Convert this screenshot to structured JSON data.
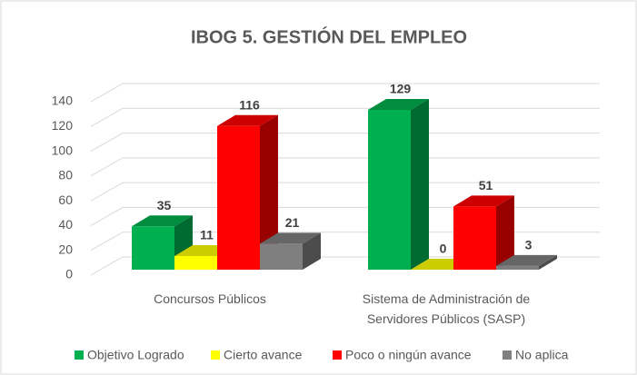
{
  "chart_data": {
    "type": "bar3d",
    "title": "IBOG 5. GESTIÓN DEL EMPLEO",
    "categories": [
      "Concursos Públicos",
      "Sistema de Administración de Servidores Públicos (SASP)"
    ],
    "series": [
      {
        "name": "Objetivo Logrado",
        "color": "#00b050",
        "values": [
          35,
          129
        ]
      },
      {
        "name": "Cierto avance",
        "color": "#ffff00",
        "values": [
          11,
          0
        ]
      },
      {
        "name": "Poco o ningún avance",
        "color": "#ff0000",
        "values": [
          116,
          51
        ]
      },
      {
        "name": "No aplica",
        "color": "#7f7f7f",
        "values": [
          21,
          3
        ]
      }
    ],
    "ylim": [
      0,
      140
    ],
    "yticks": [
      0,
      20,
      40,
      60,
      80,
      100,
      120,
      140
    ],
    "grid": true,
    "legend": "bottom"
  }
}
